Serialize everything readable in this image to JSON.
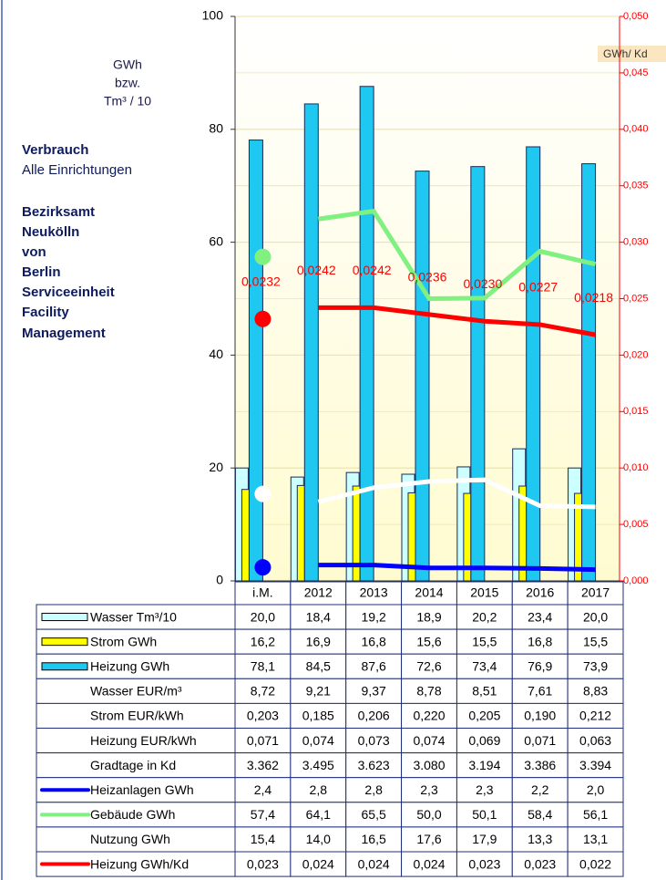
{
  "chart_data": {
    "type": "bar",
    "y_label": [
      "GWh",
      "bzw.",
      "Tm³ / 10"
    ],
    "y2_label": "GWh/ Kd",
    "side_text": [
      "Verbrauch",
      "Alle Einrichtungen",
      "Bezirksamt",
      "Neukölln",
      "von",
      "Berlin",
      "Serviceeinheit",
      "Facility",
      "Management"
    ],
    "categories": [
      "i.M.",
      "2012",
      "2013",
      "2014",
      "2015",
      "2016",
      "2017"
    ],
    "ylim": [
      0,
      100
    ],
    "yticks": [
      0,
      20,
      40,
      60,
      80,
      100
    ],
    "y2lim": [
      0,
      0.05
    ],
    "y2ticks": [
      {
        "value": 0,
        "label": "0,000"
      },
      {
        "value": 0.005,
        "label": "0,005"
      },
      {
        "value": 0.01,
        "label": "0,010"
      },
      {
        "value": 0.015,
        "label": "0,015"
      },
      {
        "value": 0.02,
        "label": "0,020"
      },
      {
        "value": 0.025,
        "label": "0,025"
      },
      {
        "value": 0.03,
        "label": "0,030"
      },
      {
        "value": 0.035,
        "label": "0,035"
      },
      {
        "value": 0.04,
        "label": "0,040"
      },
      {
        "value": 0.045,
        "label": "0,045"
      },
      {
        "value": 0.05,
        "label": "0,050"
      }
    ],
    "grid": true,
    "series": [
      {
        "name": "Wasser Tm³/10",
        "type": "bar",
        "color": "#ccffff",
        "values": [
          20.0,
          18.4,
          19.2,
          18.9,
          20.2,
          23.4,
          20.0
        ],
        "table_labels": [
          "20,0",
          "18,4",
          "19,2",
          "18,9",
          "20,2",
          "23,4",
          "20,0"
        ]
      },
      {
        "name": "Strom GWh",
        "type": "bar",
        "color": "#ffff00",
        "values": [
          16.2,
          16.9,
          16.8,
          15.6,
          15.5,
          16.8,
          15.5
        ],
        "table_labels": [
          "16,2",
          "16,9",
          "16,8",
          "15,6",
          "15,5",
          "16,8",
          "15,5"
        ]
      },
      {
        "name": "Heizung GWh",
        "type": "bar",
        "color": "#1ec8f0",
        "values": [
          78.1,
          84.5,
          87.6,
          72.6,
          73.4,
          76.9,
          73.9
        ],
        "table_labels": [
          "78,1",
          "84,5",
          "87,6",
          "72,6",
          "73,4",
          "76,9",
          "73,9"
        ]
      },
      {
        "name": "Wasser EUR/m³",
        "table_labels": [
          "8,72",
          "9,21",
          "9,37",
          "8,78",
          "8,51",
          "7,61",
          "8,83"
        ]
      },
      {
        "name": "Strom EUR/kWh",
        "table_labels": [
          "0,203",
          "0,185",
          "0,206",
          "0,220",
          "0,205",
          "0,190",
          "0,212"
        ]
      },
      {
        "name": "Heizung EUR/kWh",
        "table_labels": [
          "0,071",
          "0,074",
          "0,073",
          "0,074",
          "0,069",
          "0,071",
          "0,063"
        ]
      },
      {
        "name": "Gradtage in Kd",
        "table_labels": [
          "3.362",
          "3.495",
          "3.623",
          "3.080",
          "3.194",
          "3.386",
          "3.394"
        ]
      },
      {
        "name": "Heizanlagen GWh",
        "type": "line",
        "color": "#0000ff",
        "values": [
          2.4,
          2.8,
          2.8,
          2.3,
          2.3,
          2.2,
          2.0
        ],
        "table_labels": [
          "2,4",
          "2,8",
          "2,8",
          "2,3",
          "2,3",
          "2,2",
          "2,0"
        ]
      },
      {
        "name": "Gebäude GWh",
        "type": "line",
        "color": "#80f080",
        "values": [
          57.4,
          64.1,
          65.5,
          50.0,
          50.1,
          58.4,
          56.1
        ],
        "table_labels": [
          "57,4",
          "64,1",
          "65,5",
          "50,0",
          "50,1",
          "58,4",
          "56,1"
        ]
      },
      {
        "name": "Nutzung GWh",
        "type": "line",
        "color": "#ffffff",
        "values": [
          15.4,
          14.0,
          16.5,
          17.6,
          17.9,
          13.3,
          13.1
        ],
        "table_labels": [
          "15,4",
          "14,0",
          "16,5",
          "17,6",
          "17,9",
          "13,3",
          "13,1"
        ]
      },
      {
        "name": "Heizung GWh/Kd",
        "type": "line",
        "axis": "y2",
        "color": "#ff0000",
        "values": [
          0.0232,
          0.0242,
          0.0242,
          0.0236,
          0.023,
          0.0227,
          0.0218
        ],
        "value_labels": [
          "0,0232",
          "0,0242",
          "0,0242",
          "0,0236",
          "0,0230",
          "0,0227",
          "0,0218"
        ],
        "table_labels": [
          "0,023",
          "0,024",
          "0,024",
          "0,024",
          "0,023",
          "0,023",
          "0,022"
        ]
      }
    ]
  }
}
